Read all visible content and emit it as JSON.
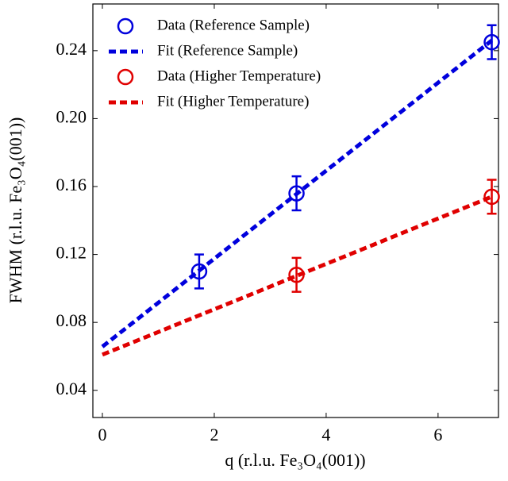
{
  "chart_data": {
    "type": "scatter",
    "xlabel": "q (r.l.u. Fe₃O₄(001))",
    "ylabel": "FWHM (r.l.u. Fe₃O₄(001))",
    "xlim": [
      -0.17,
      7.08
    ],
    "ylim": [
      0.024,
      0.2675
    ],
    "xticks": [
      0,
      2,
      4,
      6
    ],
    "yticks": [
      0.04,
      0.08,
      0.12,
      0.16,
      {
        "value": 0.2,
        "label": "0.20"
      },
      0.24
    ],
    "grid": false,
    "legend": "upper left",
    "series": [
      {
        "name": "Data (Reference Sample)",
        "color": "#0000dd",
        "style": "marker",
        "x": [
          1.73,
          3.47,
          6.96
        ],
        "values": [
          0.11,
          0.156,
          0.245
        ],
        "errors": [
          0.01,
          0.01,
          0.01
        ]
      },
      {
        "name": "Fit (Reference Sample)",
        "color": "#0000dd",
        "style": "dashed",
        "x": [
          0,
          6.96
        ],
        "values": [
          0.0657,
          0.246
        ]
      },
      {
        "name": "Data (Higher Temperature)",
        "color": "#e00000",
        "style": "marker",
        "x": [
          3.47,
          6.96
        ],
        "values": [
          0.108,
          0.154
        ],
        "errors": [
          0.01,
          0.01
        ]
      },
      {
        "name": "Fit (Higher Temperature)",
        "color": "#e00000",
        "style": "dashed",
        "x": [
          0,
          6.96
        ],
        "values": [
          0.061,
          0.154
        ]
      }
    ]
  }
}
